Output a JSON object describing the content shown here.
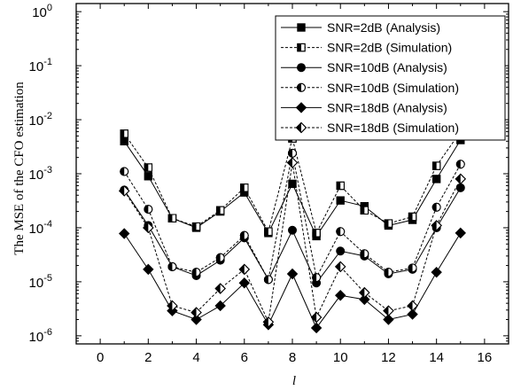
{
  "chart_data": {
    "type": "line",
    "title": "",
    "xlabel": "l",
    "ylabel": "The MSE of the CFO estimation",
    "xlim": [
      -1,
      17
    ],
    "ylim_log10": [
      -6.15,
      0.15
    ],
    "yscale": "log",
    "grid": false,
    "legend_position": "top-right",
    "x_ticks": [
      {
        "value": 0,
        "label": "0"
      },
      {
        "value": 2,
        "label": "2"
      },
      {
        "value": 4,
        "label": "4"
      },
      {
        "value": 6,
        "label": "6"
      },
      {
        "value": 8,
        "label": "8"
      },
      {
        "value": 10,
        "label": "10"
      },
      {
        "value": 12,
        "label": "12"
      },
      {
        "value": 14,
        "label": "14"
      },
      {
        "value": 16,
        "label": "16"
      }
    ],
    "y_ticks": [
      {
        "exp": 0,
        "base": "10",
        "sup": "0"
      },
      {
        "exp": -1,
        "base": "10",
        "sup": "-1"
      },
      {
        "exp": -2,
        "base": "10",
        "sup": "-2"
      },
      {
        "exp": -3,
        "base": "10",
        "sup": "-3"
      },
      {
        "exp": -4,
        "base": "10",
        "sup": "-4"
      },
      {
        "exp": -5,
        "base": "10",
        "sup": "-5"
      },
      {
        "exp": -6,
        "base": "10",
        "sup": "-6"
      }
    ],
    "x": [
      1,
      2,
      3,
      4,
      5,
      6,
      7,
      8,
      9,
      10,
      11,
      12,
      13,
      14,
      15
    ],
    "series": [
      {
        "name": "SNR=2dB (Analysis)",
        "marker": "square",
        "fill": "full",
        "dash": false,
        "values": [
          0.004,
          0.0009,
          0.00015,
          0.0001,
          0.0002,
          0.00045,
          8e-05,
          0.00065,
          7e-05,
          0.00032,
          0.00025,
          0.00011,
          0.00014,
          0.0008,
          0.0042
        ]
      },
      {
        "name": "SNR=2dB (Simulation)",
        "marker": "square",
        "fill": "half",
        "dash": true,
        "values": [
          0.0055,
          0.0013,
          0.00015,
          0.000105,
          0.00021,
          0.00055,
          8.5e-05,
          0.0045,
          8e-05,
          0.0006,
          0.00021,
          0.00012,
          0.00016,
          0.0014,
          0.006
        ]
      },
      {
        "name": "SNR=10dB (Analysis)",
        "marker": "circle",
        "fill": "full",
        "dash": false,
        "values": [
          0.0005,
          0.00011,
          1.9e-05,
          1.3e-05,
          2.5e-05,
          6.5e-05,
          1.1e-05,
          9e-05,
          9.5e-06,
          3.7e-05,
          3e-05,
          1.4e-05,
          1.7e-05,
          0.0001,
          0.00055
        ]
      },
      {
        "name": "SNR=10dB (Simulation)",
        "marker": "circle",
        "fill": "half",
        "dash": true,
        "values": [
          0.0011,
          0.00022,
          1.9e-05,
          1.5e-05,
          2.8e-05,
          7.2e-05,
          1.1e-05,
          0.0024,
          1.2e-05,
          8.5e-05,
          3.3e-05,
          1.5e-05,
          1.8e-05,
          0.00024,
          0.0015
        ]
      },
      {
        "name": "SNR=18dB (Analysis)",
        "marker": "diamond",
        "fill": "full",
        "dash": false,
        "values": [
          7.8e-05,
          1.7e-05,
          2.9e-06,
          2e-06,
          3.6e-06,
          9.5e-06,
          1.6e-06,
          1.4e-05,
          1.4e-06,
          5.6e-06,
          4.7e-06,
          2e-06,
          2.5e-06,
          1.5e-05,
          8e-05
        ]
      },
      {
        "name": "SNR=18dB (Simulation)",
        "marker": "diamond",
        "fill": "half",
        "dash": true,
        "values": [
          0.00048,
          0.0001,
          3.6e-06,
          2.7e-06,
          7.5e-06,
          1.7e-05,
          1.8e-06,
          0.0016,
          2.2e-06,
          1.9e-05,
          6.3e-06,
          2.9e-06,
          3.6e-06,
          0.00011,
          0.0008
        ]
      }
    ]
  }
}
